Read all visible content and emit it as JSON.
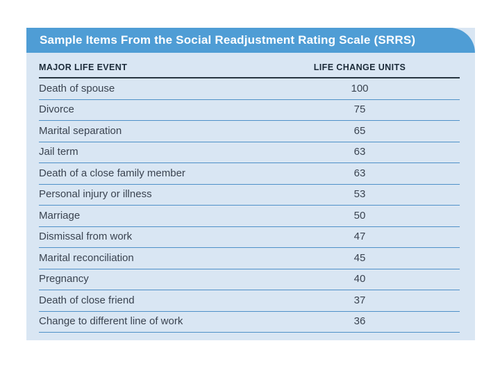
{
  "table": {
    "title": "Sample Items From the Social Readjustment Rating Scale (SRRS)",
    "headers": {
      "event": "MAJOR LIFE EVENT",
      "units": "LIFE CHANGE UNITS"
    },
    "rows": [
      {
        "event": "Death of spouse",
        "units": "100"
      },
      {
        "event": "Divorce",
        "units": "75"
      },
      {
        "event": "Marital separation",
        "units": "65"
      },
      {
        "event": "Jail term",
        "units": "63"
      },
      {
        "event": "Death of a close family member",
        "units": "63"
      },
      {
        "event": "Personal injury or illness",
        "units": "53"
      },
      {
        "event": "Marriage",
        "units": "50"
      },
      {
        "event": "Dismissal from work",
        "units": "47"
      },
      {
        "event": "Marital reconciliation",
        "units": "45"
      },
      {
        "event": "Pregnancy",
        "units": "40"
      },
      {
        "event": "Death of close friend",
        "units": "37"
      },
      {
        "event": "Change to different line of work",
        "units": "36"
      }
    ]
  },
  "colors": {
    "page_bg": "#FFFFFF",
    "title_bar": "#4F9DD5",
    "title_text": "#FFFFFF",
    "panel_bg": "#D9E6F3",
    "header_text": "#1B2A38",
    "header_rule": "#26343F",
    "row_text": "#3A4350",
    "row_rule": "#4E90C8"
  },
  "chart_data": {
    "type": "table",
    "title": "Sample Items From the Social Readjustment Rating Scale (SRRS)",
    "columns": [
      "MAJOR LIFE EVENT",
      "LIFE CHANGE UNITS"
    ],
    "categories": [
      "Death of spouse",
      "Divorce",
      "Marital separation",
      "Jail term",
      "Death of a close family member",
      "Personal injury or illness",
      "Marriage",
      "Dismissal from work",
      "Marital reconciliation",
      "Pregnancy",
      "Death of close friend",
      "Change to different line of work"
    ],
    "values": [
      100,
      75,
      65,
      63,
      63,
      53,
      50,
      47,
      45,
      40,
      37,
      36
    ]
  }
}
